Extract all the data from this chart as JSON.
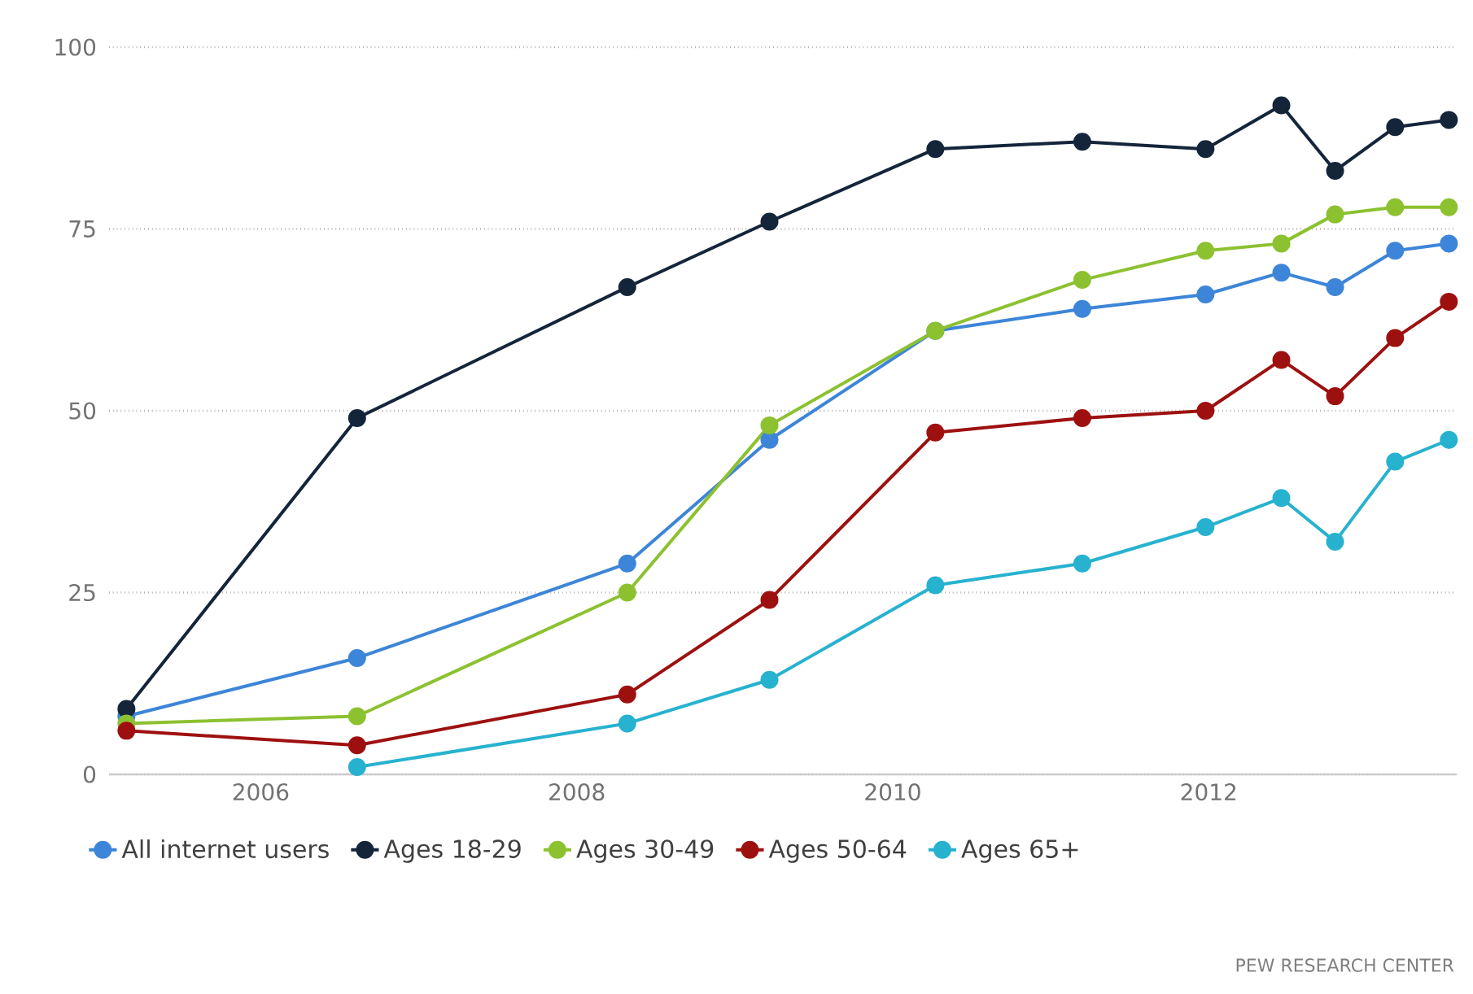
{
  "chart_data": {
    "type": "line",
    "x": [
      2005.15,
      2006.61,
      2008.32,
      2009.22,
      2010.27,
      2011.2,
      2011.98,
      2012.46,
      2012.8,
      2013.18,
      2013.52
    ],
    "series": [
      {
        "name": "All internet users",
        "color": "#3d85d8",
        "values": [
          8,
          16,
          29,
          46,
          61,
          64,
          66,
          69,
          67,
          72,
          73
        ]
      },
      {
        "name": "Ages 18-29",
        "color": "#14253a",
        "values": [
          9,
          49,
          67,
          76,
          86,
          87,
          86,
          92,
          83,
          89,
          90
        ]
      },
      {
        "name": "Ages 30-49",
        "color": "#8cc130",
        "values": [
          7,
          8,
          25,
          48,
          61,
          68,
          72,
          73,
          77,
          78,
          78
        ]
      },
      {
        "name": "Ages 50-64",
        "color": "#9e1010",
        "values": [
          6,
          4,
          11,
          24,
          47,
          49,
          50,
          57,
          52,
          60,
          65
        ]
      },
      {
        "name": "Ages 65+",
        "color": "#27b2cf",
        "values": [
          null,
          1,
          7,
          13,
          26,
          29,
          34,
          38,
          32,
          43,
          46
        ]
      }
    ],
    "xlim": [
      2005.04,
      2013.57
    ],
    "xticks": [
      2006,
      2008,
      2010,
      2012
    ],
    "ylim": [
      0,
      100
    ],
    "yticks": [
      0,
      25,
      50,
      75,
      100
    ],
    "grid": "y",
    "legend": "bottom left",
    "marker": "circle",
    "line_style": "solid",
    "annotations": [
      "PEW RESEARCH CENTER"
    ]
  }
}
